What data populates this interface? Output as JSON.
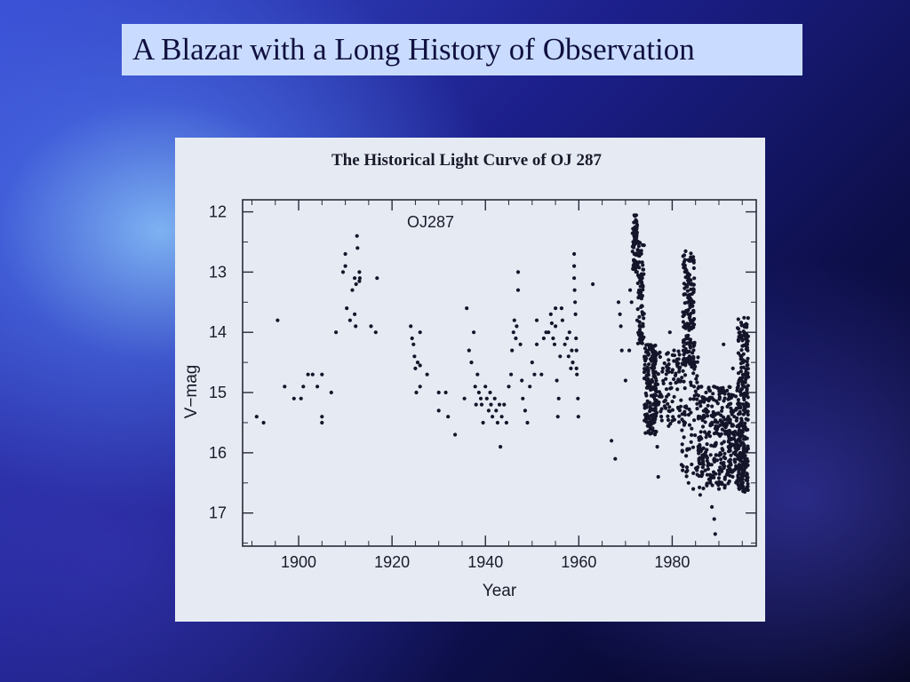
{
  "slide": {
    "title": "A Blazar with a Long History of Observation"
  },
  "chart_data": {
    "type": "scatter",
    "title": "The Historical Light Curve of OJ 287",
    "xlabel": "Year",
    "ylabel": "V−mag",
    "annotation": "OJ287",
    "xlim": [
      1888,
      1998
    ],
    "ylim": [
      17.55,
      11.8
    ],
    "y_inverted": true,
    "xticks": [
      1900,
      1920,
      1940,
      1960,
      1980
    ],
    "xtick_labels": [
      "1900",
      "1920",
      "1940",
      "1960",
      "1980"
    ],
    "yticks": [
      12,
      13,
      14,
      15,
      16,
      17
    ],
    "ytick_labels": [
      "12",
      "13",
      "14",
      "15",
      "16",
      "17"
    ],
    "grid": false,
    "marker_color": "#15152a",
    "series": [
      {
        "name": "",
        "points": [
          [
            1891,
            15.4
          ],
          [
            1892.5,
            15.5
          ],
          [
            1895.5,
            13.8
          ],
          [
            1897,
            14.9
          ],
          [
            1899,
            15.1
          ],
          [
            1900.5,
            15.1
          ],
          [
            1901,
            14.9
          ],
          [
            1902,
            14.7
          ],
          [
            1903,
            14.7
          ],
          [
            1904,
            14.9
          ],
          [
            1905,
            15.5
          ],
          [
            1905,
            15.4
          ],
          [
            1905,
            14.7
          ],
          [
            1907,
            15.0
          ],
          [
            1908,
            14.0
          ],
          [
            1909.5,
            13.0
          ],
          [
            1910,
            12.7
          ],
          [
            1910,
            12.9
          ],
          [
            1910.3,
            13.6
          ],
          [
            1911,
            13.8
          ],
          [
            1911.5,
            13.3
          ],
          [
            1912,
            13.7
          ],
          [
            1912,
            13.1
          ],
          [
            1912.2,
            13.9
          ],
          [
            1912.3,
            13.2
          ],
          [
            1912.5,
            12.4
          ],
          [
            1912.6,
            12.6
          ],
          [
            1913,
            13.0
          ],
          [
            1913,
            13.15
          ],
          [
            1913.1,
            13.1
          ],
          [
            1915.5,
            13.9
          ],
          [
            1916.5,
            14.0
          ],
          [
            1916.8,
            13.1
          ],
          [
            1924,
            13.9
          ],
          [
            1924.3,
            14.1
          ],
          [
            1924.6,
            14.2
          ],
          [
            1924.8,
            14.4
          ],
          [
            1925,
            14.6
          ],
          [
            1925.2,
            15.0
          ],
          [
            1925.5,
            14.5
          ],
          [
            1926,
            14.55
          ],
          [
            1926,
            14.0
          ],
          [
            1926,
            14.9
          ],
          [
            1927.5,
            14.7
          ],
          [
            1930,
            15.0
          ],
          [
            1930,
            15.3
          ],
          [
            1931.5,
            15.0
          ],
          [
            1932,
            15.4
          ],
          [
            1933.5,
            15.7
          ],
          [
            1935.5,
            15.1
          ],
          [
            1936,
            13.6
          ],
          [
            1936.5,
            14.3
          ],
          [
            1937,
            14.5
          ],
          [
            1937.5,
            14.0
          ],
          [
            1937.8,
            14.9
          ],
          [
            1938,
            15.2
          ],
          [
            1938.3,
            14.7
          ],
          [
            1938.6,
            15.0
          ],
          [
            1939,
            15.1
          ],
          [
            1939.2,
            15.2
          ],
          [
            1939.5,
            15.5
          ],
          [
            1940,
            14.9
          ],
          [
            1940.3,
            15.1
          ],
          [
            1940.7,
            15.3
          ],
          [
            1941,
            15.0
          ],
          [
            1941.2,
            15.2
          ],
          [
            1941.5,
            15.4
          ],
          [
            1942,
            15.1
          ],
          [
            1942.3,
            15.3
          ],
          [
            1942.6,
            15.5
          ],
          [
            1943,
            15.2
          ],
          [
            1943.2,
            15.9
          ],
          [
            1943.5,
            15.4
          ],
          [
            1944,
            15.2
          ],
          [
            1944.5,
            15.5
          ],
          [
            1945,
            14.9
          ],
          [
            1945.5,
            14.7
          ],
          [
            1945.7,
            14.3
          ],
          [
            1946,
            14.0
          ],
          [
            1946.2,
            13.8
          ],
          [
            1946.5,
            14.1
          ],
          [
            1946.7,
            13.9
          ],
          [
            1947,
            13.0
          ],
          [
            1947,
            13.3
          ],
          [
            1947.5,
            14.2
          ],
          [
            1947.8,
            14.8
          ],
          [
            1948,
            15.1
          ],
          [
            1948.5,
            15.3
          ],
          [
            1949,
            15.5
          ],
          [
            1949.5,
            14.9
          ],
          [
            1950,
            14.5
          ],
          [
            1950.5,
            14.7
          ],
          [
            1951,
            14.2
          ],
          [
            1951,
            13.8
          ],
          [
            1952,
            14.7
          ],
          [
            1952.5,
            14.1
          ],
          [
            1953,
            14.0
          ],
          [
            1953.5,
            14.0
          ],
          [
            1954,
            13.7
          ],
          [
            1954.2,
            13.85
          ],
          [
            1954.5,
            14.1
          ],
          [
            1954.8,
            14.2
          ],
          [
            1955,
            13.6
          ],
          [
            1955,
            13.9
          ],
          [
            1955.3,
            14.8
          ],
          [
            1955.5,
            15.4
          ],
          [
            1955.7,
            15.1
          ],
          [
            1956,
            14.4
          ],
          [
            1956.3,
            13.6
          ],
          [
            1956.5,
            13.8
          ],
          [
            1957,
            14.2
          ],
          [
            1957.5,
            14.1
          ],
          [
            1957.8,
            14.4
          ],
          [
            1958,
            14.0
          ],
          [
            1958.3,
            14.6
          ],
          [
            1958.5,
            14.3
          ],
          [
            1958.7,
            14.5
          ],
          [
            1959,
            12.7
          ],
          [
            1959,
            12.9
          ],
          [
            1959,
            13.1
          ],
          [
            1959.1,
            13.3
          ],
          [
            1959.2,
            13.5
          ],
          [
            1959.3,
            13.7
          ],
          [
            1959.4,
            14.1
          ],
          [
            1959.5,
            14.3
          ],
          [
            1959.5,
            14.6
          ],
          [
            1959.6,
            14.7
          ],
          [
            1959.8,
            15.1
          ],
          [
            1959.9,
            15.4
          ],
          [
            1963,
            13.2
          ],
          [
            1967,
            15.8
          ],
          [
            1967.8,
            16.1
          ],
          [
            1968.5,
            13.5
          ],
          [
            1968.8,
            13.7
          ],
          [
            1969,
            13.9
          ],
          [
            1969.2,
            14.3
          ],
          [
            1970,
            14.8
          ],
          [
            1970.8,
            14.3
          ],
          [
            1971,
            13.3
          ],
          [
            1971.3,
            13.5
          ],
          [
            1971.6,
            12.95
          ],
          [
            1972.5,
            13.8
          ]
        ],
        "ranges": [
          {
            "x0": 1971.5,
            "x1": 1972.7,
            "y0": 12.05,
            "y1": 13.0,
            "count": 70
          },
          {
            "x0": 1972.6,
            "x1": 1974.0,
            "y0": 12.5,
            "y1": 14.2,
            "count": 80
          },
          {
            "x0": 1974.0,
            "x1": 1976.6,
            "y0": 14.2,
            "y1": 15.7,
            "count": 160
          },
          {
            "x0": 1976.0,
            "x1": 1982.0,
            "y0": 14.3,
            "y1": 15.6,
            "count": 110
          },
          {
            "x0": 1982.3,
            "x1": 1984.8,
            "y0": 12.65,
            "y1": 14.6,
            "count": 150
          },
          {
            "x0": 1982.0,
            "x1": 1986.0,
            "y0": 14.4,
            "y1": 16.4,
            "count": 90
          },
          {
            "x0": 1985.5,
            "x1": 1992.5,
            "y0": 14.9,
            "y1": 16.6,
            "count": 260
          },
          {
            "x0": 1992.0,
            "x1": 1995.7,
            "y0": 14.9,
            "y1": 16.5,
            "count": 150
          },
          {
            "x0": 1994.0,
            "x1": 1996.3,
            "y0": 13.75,
            "y1": 16.65,
            "count": 230
          }
        ],
        "extra_points": [
          [
            1976.8,
            15.9
          ],
          [
            1977,
            16.4
          ],
          [
            1978,
            14.6
          ],
          [
            1979.5,
            14.0
          ],
          [
            1981,
            14.5
          ],
          [
            1982,
            16.2
          ],
          [
            1983.5,
            16.5
          ],
          [
            1984.5,
            16.6
          ],
          [
            1986,
            16.7
          ],
          [
            1988.5,
            16.9
          ],
          [
            1989,
            17.1
          ],
          [
            1989.2,
            17.35
          ],
          [
            1990,
            16.6
          ],
          [
            1991,
            14.2
          ],
          [
            1993,
            14.6
          ]
        ]
      }
    ]
  }
}
